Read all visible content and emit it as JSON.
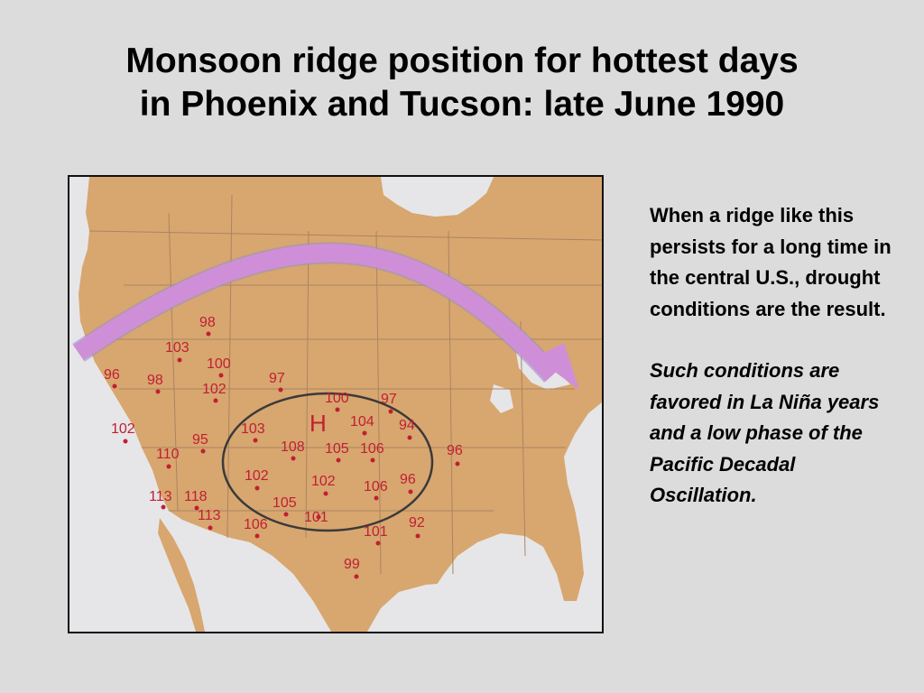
{
  "title": {
    "line1": "Monsoon ridge position for hottest days",
    "line2": "in Phoenix and Tucson: late June 1990"
  },
  "side_text": {
    "paragraph1": "When a ridge like this persists for a long time in the central U.S., drought conditions are the result.",
    "paragraph2": "Such conditions are favored in La Niña years and a low phase of the Pacific Decadal Oscillation."
  },
  "map": {
    "high_label": "H",
    "ridge_arrow_color": "#cf8fd8",
    "land_color": "#d8a66f",
    "water_color": "#e6e6e8",
    "temperatures": [
      "98",
      "103",
      "100",
      "96",
      "98",
      "102",
      "97",
      "100",
      "97",
      "102",
      "95",
      "103",
      "108",
      "104",
      "94",
      "105",
      "106",
      "96",
      "110",
      "102",
      "102",
      "96",
      "106",
      "113",
      "118",
      "113",
      "105",
      "101",
      "106",
      "92",
      "101",
      "99"
    ]
  },
  "colors": {
    "background": "#dcdcdc",
    "label_red": "#c01f33"
  }
}
